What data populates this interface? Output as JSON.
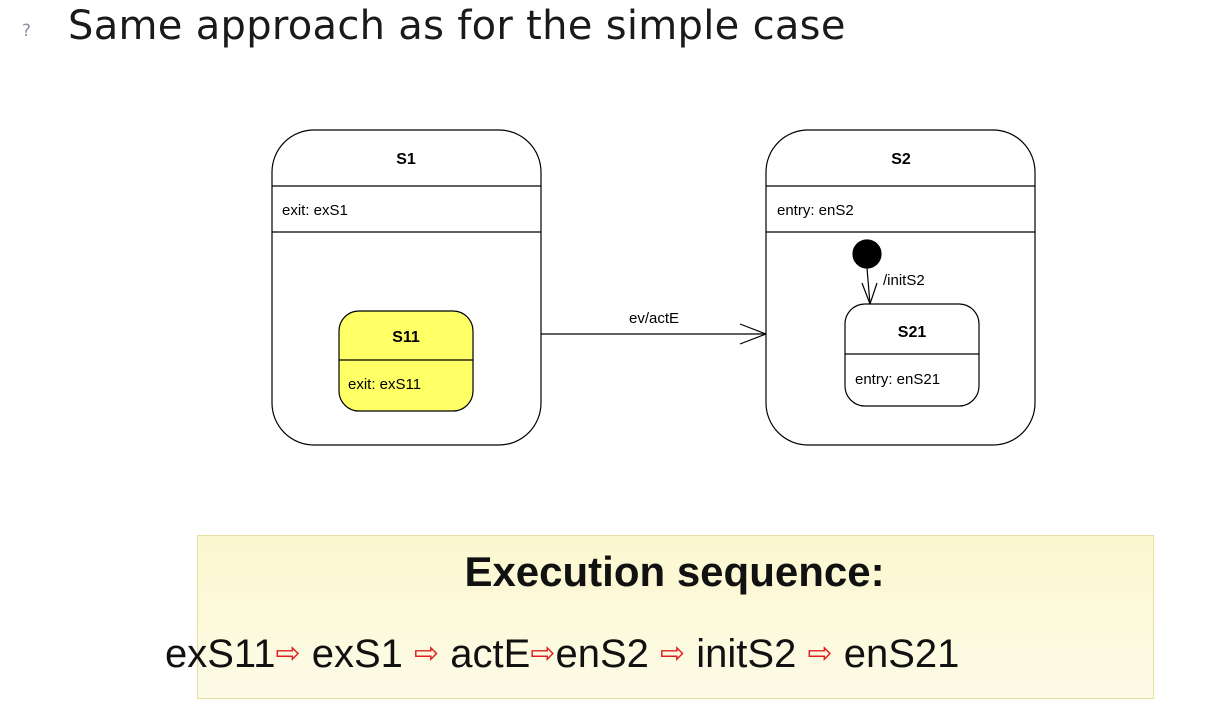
{
  "bullet": {
    "marker": "?",
    "text": "Same approach as for the simple case"
  },
  "diagram": {
    "s1": {
      "name": "S1",
      "action": "exit: exS1"
    },
    "s11": {
      "name": "S11",
      "action": "exit: exS11",
      "fill": "#ffff66"
    },
    "s2": {
      "name": "S2",
      "action": "entry: enS2"
    },
    "s21": {
      "name": "S21",
      "action": "entry: enS21"
    },
    "transition_label": "ev/actE",
    "initial_label": "/initS2"
  },
  "sequence": {
    "title": "Execution sequence:",
    "steps": [
      "exS11",
      "exS1",
      "actE",
      "enS2",
      "initS2",
      "enS21"
    ],
    "arrow": "⇨",
    "arrow_color": "#e02020"
  }
}
